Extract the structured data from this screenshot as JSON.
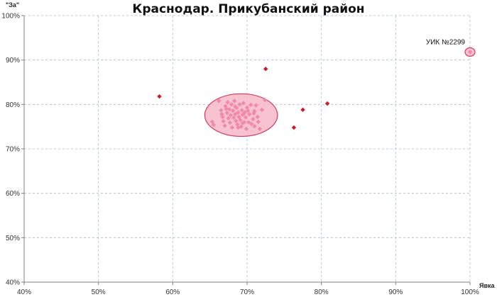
{
  "chart_data": {
    "type": "scatter",
    "title": "Краснодар. Прикубанский район",
    "xlabel": "Явка",
    "ylabel": "\"За\"",
    "xlim": [
      0.4,
      1.0
    ],
    "ylim": [
      0.4,
      1.0
    ],
    "x_ticks": [
      "40%",
      "50%",
      "60%",
      "70%",
      "80%",
      "90%",
      "100%"
    ],
    "y_ticks": [
      "40%",
      "50%",
      "60%",
      "70%",
      "80%",
      "90%",
      "100%"
    ],
    "grid": true,
    "colors": {
      "points": "#cc1a2b",
      "cluster_points": "#f08aa8",
      "ellipse_fill": "#f7b7c8",
      "ellipse_stroke": "#d43a5c"
    },
    "outliers": [
      {
        "x": 0.582,
        "y": 0.818
      },
      {
        "x": 0.725,
        "y": 0.88
      },
      {
        "x": 0.775,
        "y": 0.788
      },
      {
        "x": 0.763,
        "y": 0.748
      },
      {
        "x": 0.808,
        "y": 0.802
      },
      {
        "x": 1.0,
        "y": 0.918
      }
    ],
    "cluster": {
      "center": {
        "x": 0.692,
        "y": 0.776
      },
      "radius_x": 0.049,
      "radius_y": 0.048,
      "points": [
        {
          "x": 0.653,
          "y": 0.761
        },
        {
          "x": 0.655,
          "y": 0.754
        },
        {
          "x": 0.662,
          "y": 0.808
        },
        {
          "x": 0.665,
          "y": 0.787
        },
        {
          "x": 0.667,
          "y": 0.772
        },
        {
          "x": 0.668,
          "y": 0.762
        },
        {
          "x": 0.67,
          "y": 0.752
        },
        {
          "x": 0.671,
          "y": 0.796
        },
        {
          "x": 0.673,
          "y": 0.781
        },
        {
          "x": 0.674,
          "y": 0.805
        },
        {
          "x": 0.675,
          "y": 0.769
        },
        {
          "x": 0.676,
          "y": 0.789
        },
        {
          "x": 0.677,
          "y": 0.759
        },
        {
          "x": 0.678,
          "y": 0.776
        },
        {
          "x": 0.679,
          "y": 0.8
        },
        {
          "x": 0.68,
          "y": 0.748
        },
        {
          "x": 0.681,
          "y": 0.786
        },
        {
          "x": 0.682,
          "y": 0.77
        },
        {
          "x": 0.683,
          "y": 0.808
        },
        {
          "x": 0.684,
          "y": 0.778
        },
        {
          "x": 0.685,
          "y": 0.763
        },
        {
          "x": 0.686,
          "y": 0.792
        },
        {
          "x": 0.687,
          "y": 0.755
        },
        {
          "x": 0.688,
          "y": 0.782
        },
        {
          "x": 0.689,
          "y": 0.772
        },
        {
          "x": 0.69,
          "y": 0.8
        },
        {
          "x": 0.691,
          "y": 0.765
        },
        {
          "x": 0.692,
          "y": 0.75
        },
        {
          "x": 0.693,
          "y": 0.787
        },
        {
          "x": 0.694,
          "y": 0.777
        },
        {
          "x": 0.695,
          "y": 0.803
        },
        {
          "x": 0.696,
          "y": 0.76
        },
        {
          "x": 0.697,
          "y": 0.782
        },
        {
          "x": 0.698,
          "y": 0.771
        },
        {
          "x": 0.699,
          "y": 0.745
        },
        {
          "x": 0.7,
          "y": 0.793
        },
        {
          "x": 0.702,
          "y": 0.76
        },
        {
          "x": 0.703,
          "y": 0.778
        },
        {
          "x": 0.705,
          "y": 0.799
        },
        {
          "x": 0.706,
          "y": 0.756
        },
        {
          "x": 0.708,
          "y": 0.767
        },
        {
          "x": 0.709,
          "y": 0.78
        },
        {
          "x": 0.71,
          "y": 0.751
        },
        {
          "x": 0.712,
          "y": 0.798
        },
        {
          "x": 0.714,
          "y": 0.772
        },
        {
          "x": 0.715,
          "y": 0.761
        },
        {
          "x": 0.717,
          "y": 0.745
        },
        {
          "x": 0.72,
          "y": 0.788
        },
        {
          "x": 0.724,
          "y": 0.81
        },
        {
          "x": 0.666,
          "y": 0.778
        },
        {
          "x": 0.672,
          "y": 0.79
        },
        {
          "x": 0.688,
          "y": 0.748
        },
        {
          "x": 0.701,
          "y": 0.786
        },
        {
          "x": 0.684,
          "y": 0.795
        },
        {
          "x": 0.694,
          "y": 0.758
        },
        {
          "x": 0.71,
          "y": 0.785
        }
      ]
    },
    "annotations": [
      {
        "text": "УИК №2299",
        "x": 1.0,
        "y": 0.918
      }
    ]
  }
}
